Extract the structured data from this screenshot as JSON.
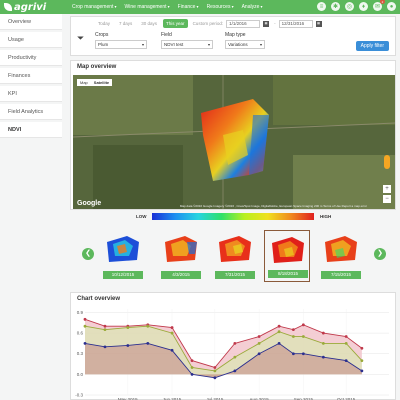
{
  "app": {
    "logo": "agrivi"
  },
  "nav": {
    "items": [
      "Crop management",
      "Wine management",
      "Finance",
      "Resources",
      "Analyze"
    ],
    "notifications": "2"
  },
  "sidebar": {
    "items": [
      {
        "label": "Overview"
      },
      {
        "label": "Usage"
      },
      {
        "label": "Productivity"
      },
      {
        "label": "Finances"
      },
      {
        "label": "KPI"
      },
      {
        "label": "Field Analytics"
      },
      {
        "label": "NDVI",
        "active": true
      }
    ]
  },
  "filter": {
    "periods": [
      "Today",
      "7 days",
      "30 days",
      "This year"
    ],
    "active_period": "This year",
    "custom_label": "Custom period:",
    "date_from": "1/1/2016",
    "date_to": "12/31/2016",
    "crops_label": "Crops",
    "crops_value": "Plum",
    "field_label": "Field",
    "field_value": "NDVI test",
    "maptype_label": "Map type",
    "maptype_value": "Variations",
    "apply_label": "Apply filter"
  },
  "map": {
    "title": "Map overview",
    "tabs": [
      "Map",
      "Satellite"
    ],
    "active_tab": "Satellite",
    "google": "Google",
    "attribution": "Map data ©2016 Google Imagery ©2016 , Cnes/Spot Image, DigitalGlobe, European Space Imaging   200 m   Terms of Use   Report a map error"
  },
  "legend": {
    "low": "LOW",
    "high": "HIGH"
  },
  "thumbnails": [
    {
      "date": "10/12/2015",
      "tone": "blue"
    },
    {
      "date": "4/3/2015",
      "tone": "red"
    },
    {
      "date": "7/31/2015",
      "tone": "red"
    },
    {
      "date": "8/18/2015",
      "tone": "red",
      "selected": true
    },
    {
      "date": "7/15/2015",
      "tone": "red"
    }
  ],
  "chart_title": "Chart overview",
  "chart_data": {
    "type": "area",
    "x": [
      "2015-04-01",
      "2015-04-15",
      "2015-05-01",
      "2015-05-15",
      "2015-06-01",
      "2015-06-15",
      "2015-07-01",
      "2015-07-15",
      "2015-08-01",
      "2015-08-15",
      "2015-08-25",
      "2015-09-01",
      "2015-09-15",
      "2015-10-01",
      "2015-10-12"
    ],
    "xticks": [
      "May 2015",
      "Jun 2015",
      "Jul 2015",
      "Aug 2015",
      "Sep 2015",
      "Oct 2015"
    ],
    "yticks": [
      "0.9",
      "0.6",
      "0.3",
      "0.0",
      "-0.3"
    ],
    "ylim": [
      -0.3,
      0.95
    ],
    "series": [
      {
        "color": "#c0394b",
        "values": [
          0.8,
          0.7,
          0.7,
          0.72,
          0.68,
          0.2,
          0.1,
          0.45,
          0.55,
          0.7,
          0.65,
          0.72,
          0.6,
          0.55,
          0.38
        ]
      },
      {
        "color": "#9aaa3a",
        "values": [
          0.7,
          0.65,
          0.68,
          0.7,
          0.6,
          0.1,
          0.05,
          0.25,
          0.45,
          0.62,
          0.55,
          0.55,
          0.45,
          0.45,
          0.2
        ]
      },
      {
        "color": "#2b2f8f",
        "values": [
          0.45,
          0.4,
          0.42,
          0.45,
          0.35,
          0.0,
          -0.05,
          0.05,
          0.3,
          0.45,
          0.3,
          0.3,
          0.25,
          0.2,
          0.05
        ]
      }
    ],
    "grid": true
  }
}
